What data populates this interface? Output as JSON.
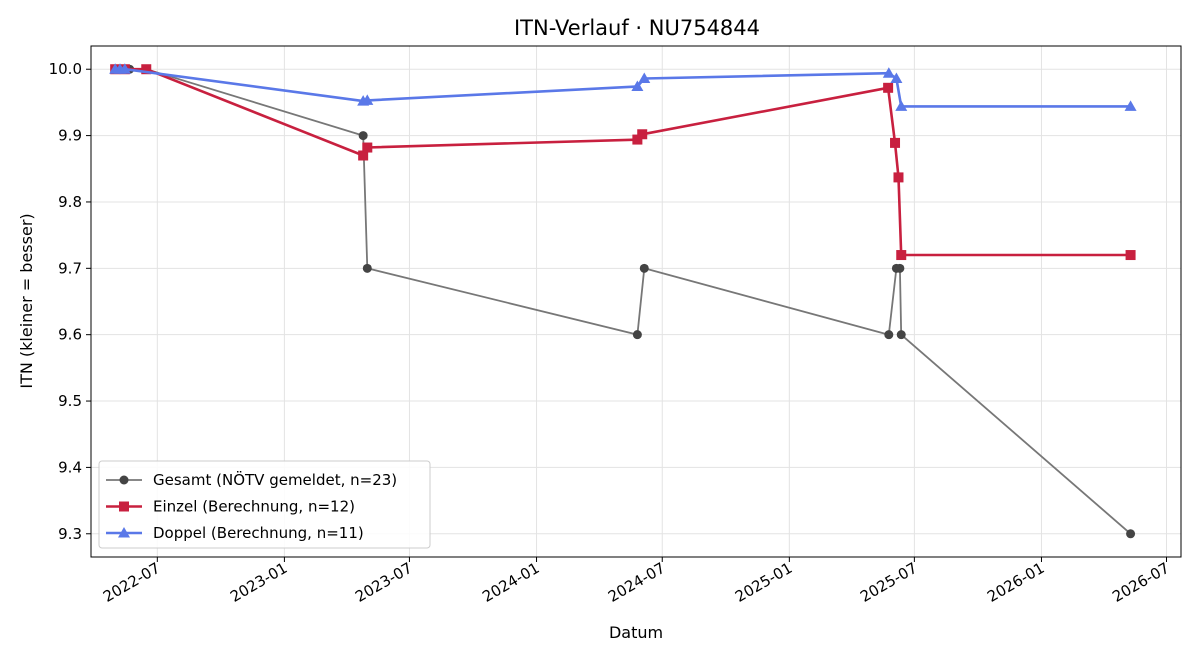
{
  "chart_data": {
    "type": "line",
    "title": "ITN-Verlauf · NU754844",
    "xlabel": "Datum",
    "ylabel": "ITN  (kleiner = besser)",
    "ylim": [
      9.265,
      10.035
    ],
    "xlim": [
      "2022-03-27",
      "2026-07-22"
    ],
    "grid": true,
    "legend_position": "lower-left",
    "y_ticks": [
      9.3,
      9.4,
      9.5,
      9.6,
      9.7,
      9.8,
      9.9,
      10.0
    ],
    "x_ticks": [
      "2022-07",
      "2023-01",
      "2023-07",
      "2024-01",
      "2024-07",
      "2025-01",
      "2025-07",
      "2026-01",
      "2026-07"
    ],
    "series": [
      {
        "name": "Gesamt (NÖTV gemeldet, n=23)",
        "color": "#777777",
        "marker_color": "#444444",
        "marker": "circle",
        "x": [
          "2022-05-01",
          "2022-05-08",
          "2022-05-15",
          "2022-05-22",
          "2022-06-15",
          "2023-04-25",
          "2023-05-01",
          "2024-05-26",
          "2024-06-05",
          "2025-05-25",
          "2025-06-05",
          "2025-06-10",
          "2025-06-12",
          "2026-05-10"
        ],
        "y": [
          10.0,
          10.0,
          10.0,
          10.0,
          10.0,
          9.9,
          9.7,
          9.6,
          9.7,
          9.6,
          9.7,
          9.7,
          9.6,
          9.3
        ]
      },
      {
        "name": "Einzel (Berechnung, n=12)",
        "color": "#c8203f",
        "marker": "square",
        "x": [
          "2022-05-01",
          "2022-05-15",
          "2022-06-15",
          "2023-04-25",
          "2023-05-01",
          "2024-05-26",
          "2024-06-02",
          "2025-05-24",
          "2025-06-03",
          "2025-06-08",
          "2025-06-12",
          "2026-05-10"
        ],
        "y": [
          10.0,
          10.0,
          10.0,
          9.87,
          9.882,
          9.894,
          9.902,
          9.972,
          9.889,
          9.837,
          9.72,
          9.72
        ]
      },
      {
        "name": "Doppel (Berechnung, n=11)",
        "color": "#5a78e8",
        "marker": "triangle",
        "x": [
          "2022-05-01",
          "2022-05-08",
          "2022-05-15",
          "2023-04-25",
          "2023-05-01",
          "2024-05-26",
          "2024-06-05",
          "2025-05-25",
          "2025-06-05",
          "2025-06-12",
          "2026-05-10"
        ],
        "y": [
          10.0,
          10.0,
          10.0,
          9.952,
          9.953,
          9.974,
          9.986,
          9.994,
          9.986,
          9.944,
          9.944
        ]
      }
    ]
  }
}
